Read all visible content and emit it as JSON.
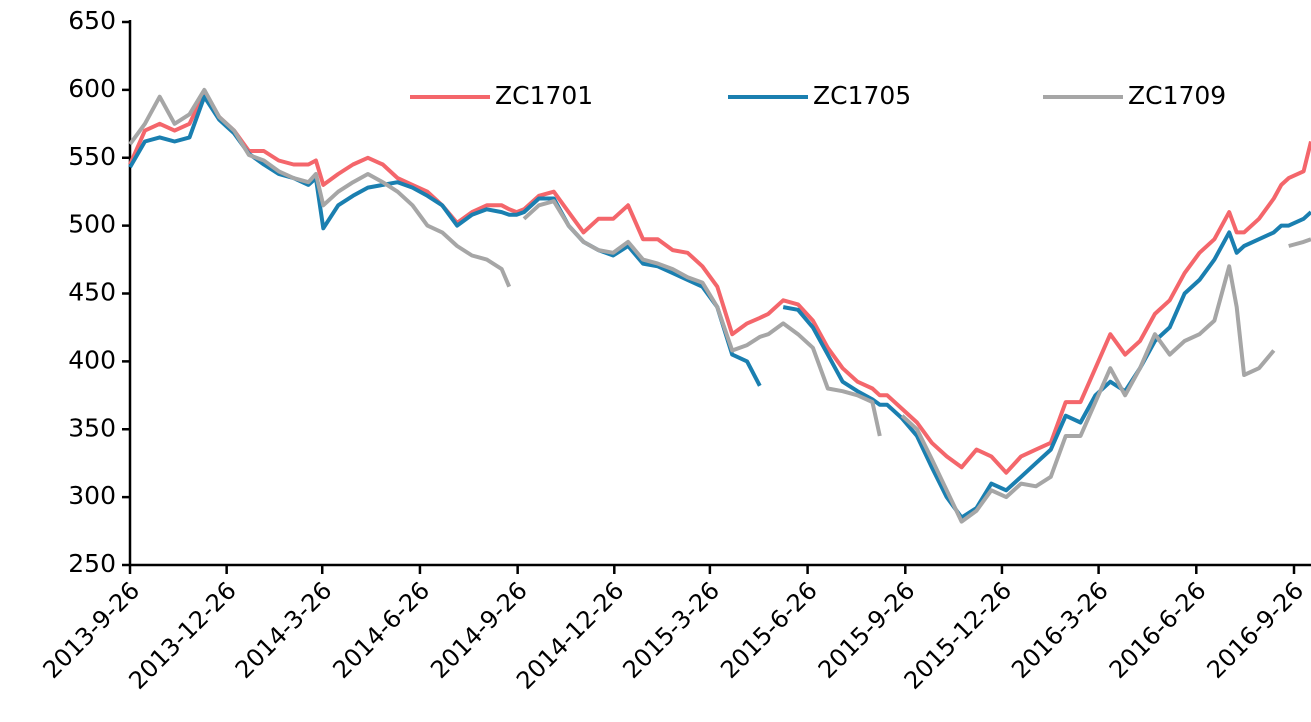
{
  "chart_data": {
    "type": "line",
    "x": [
      "2013-9-26",
      "2013-10-10",
      "2013-10-24",
      "2013-11-7",
      "2013-11-21",
      "2013-12-5",
      "2013-12-19",
      "2014-1-2",
      "2014-1-16",
      "2014-1-30",
      "2014-2-13",
      "2014-2-27",
      "2014-3-13",
      "2014-3-20",
      "2014-3-27",
      "2014-4-10",
      "2014-4-24",
      "2014-5-8",
      "2014-5-22",
      "2014-6-5",
      "2014-6-19",
      "2014-7-3",
      "2014-7-17",
      "2014-7-31",
      "2014-8-14",
      "2014-8-28",
      "2014-9-11",
      "2014-9-18",
      "2014-9-25",
      "2014-10-2",
      "2014-10-16",
      "2014-10-30",
      "2014-11-13",
      "2014-11-27",
      "2014-12-11",
      "2014-12-25",
      "2015-1-8",
      "2015-1-22",
      "2015-2-5",
      "2015-2-19",
      "2015-3-5",
      "2015-3-19",
      "2015-4-2",
      "2015-4-16",
      "2015-4-30",
      "2015-5-12",
      "2015-5-20",
      "2015-6-3",
      "2015-6-17",
      "2015-7-1",
      "2015-7-15",
      "2015-7-29",
      "2015-8-12",
      "2015-8-26",
      "2015-9-2",
      "2015-9-9",
      "2015-9-23",
      "2015-10-7",
      "2015-10-21",
      "2015-11-4",
      "2015-11-18",
      "2015-12-2",
      "2015-12-16",
      "2015-12-30",
      "2016-1-13",
      "2016-1-27",
      "2016-2-10",
      "2016-2-24",
      "2016-3-9",
      "2016-3-23",
      "2016-4-6",
      "2016-4-20",
      "2016-5-4",
      "2016-5-18",
      "2016-6-1",
      "2016-6-15",
      "2016-6-29",
      "2016-7-13",
      "2016-7-27",
      "2016-8-3",
      "2016-8-10",
      "2016-8-24",
      "2016-9-7",
      "2016-9-14",
      "2016-9-21",
      "2016-10-5",
      "2016-10-12"
    ],
    "series": [
      {
        "name": "ZC1701",
        "color": "#f4666b",
        "values": [
          545,
          570,
          575,
          570,
          575,
          598,
          580,
          570,
          555,
          555,
          548,
          545,
          545,
          548,
          530,
          538,
          545,
          550,
          545,
          535,
          530,
          525,
          515,
          502,
          510,
          515,
          515,
          512,
          510,
          512,
          522,
          525,
          510,
          495,
          505,
          505,
          515,
          490,
          490,
          482,
          480,
          470,
          455,
          420,
          428,
          432,
          435,
          445,
          442,
          430,
          410,
          395,
          385,
          380,
          375,
          375,
          365,
          355,
          340,
          330,
          322,
          335,
          330,
          318,
          330,
          335,
          340,
          370,
          370,
          395,
          420,
          405,
          415,
          435,
          445,
          465,
          480,
          490,
          510,
          495,
          495,
          505,
          520,
          530,
          535,
          540,
          562
        ]
      },
      {
        "name": "ZC1705",
        "color": "#1a7fb0",
        "values": [
          543,
          562,
          565,
          562,
          565,
          595,
          578,
          568,
          553,
          545,
          538,
          535,
          530,
          535,
          498,
          515,
          522,
          528,
          530,
          532,
          528,
          522,
          515,
          500,
          508,
          512,
          510,
          508,
          508,
          510,
          520,
          520,
          500,
          488,
          482,
          478,
          485,
          472,
          470,
          465,
          460,
          455,
          440,
          405,
          400,
          382,
          null,
          440,
          438,
          425,
          405,
          385,
          378,
          372,
          368,
          368,
          358,
          345,
          322,
          300,
          285,
          292,
          310,
          305,
          315,
          325,
          335,
          360,
          355,
          375,
          385,
          378,
          395,
          415,
          425,
          450,
          460,
          475,
          495,
          480,
          485,
          490,
          495,
          500,
          500,
          505,
          510
        ]
      },
      {
        "name": "ZC1709",
        "color": "#a6a6a6",
        "values": [
          560,
          575,
          595,
          575,
          582,
          600,
          580,
          570,
          552,
          548,
          540,
          535,
          532,
          538,
          515,
          525,
          532,
          538,
          532,
          525,
          515,
          500,
          495,
          485,
          478,
          475,
          468,
          455,
          null,
          505,
          515,
          518,
          500,
          488,
          482,
          480,
          488,
          475,
          472,
          468,
          462,
          458,
          440,
          408,
          412,
          418,
          420,
          428,
          420,
          410,
          380,
          378,
          375,
          370,
          345,
          null,
          360,
          350,
          328,
          305,
          282,
          290,
          305,
          300,
          310,
          308,
          315,
          345,
          345,
          370,
          395,
          375,
          395,
          420,
          405,
          415,
          420,
          430,
          470,
          440,
          390,
          395,
          408,
          null,
          485,
          488,
          490
        ]
      }
    ],
    "xlim": [
      "2013-9-26",
      "2016-10-12"
    ],
    "xticks": [
      "2013-9-26",
      "2013-12-26",
      "2014-3-26",
      "2014-6-26",
      "2014-9-26",
      "2014-12-26",
      "2015-3-26",
      "2015-6-26",
      "2015-9-26",
      "2015-12-26",
      "2016-3-26",
      "2016-6-26",
      "2016-9-26"
    ],
    "ylim": [
      250,
      650
    ],
    "yticks": [
      250,
      300,
      350,
      400,
      450,
      500,
      550,
      600,
      650
    ],
    "grid": false,
    "legend": "upper center"
  }
}
